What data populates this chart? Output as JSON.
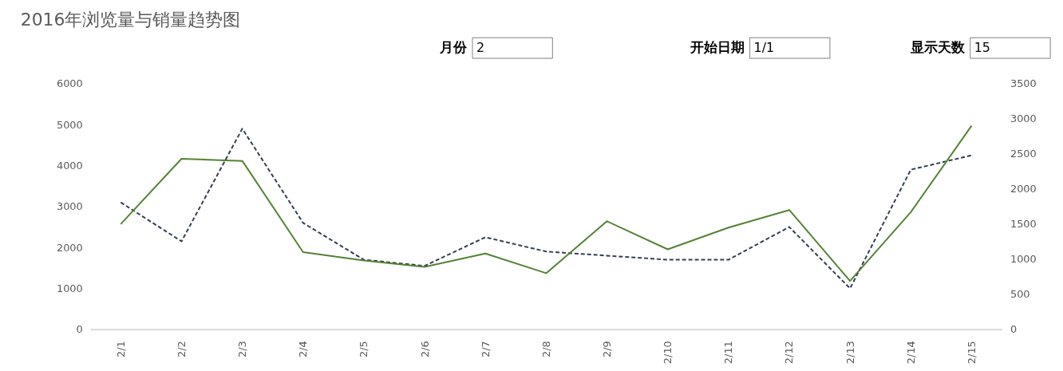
{
  "chart_data": {
    "type": "line",
    "title": "2016年浏览量与销量趋势图",
    "annotations": [
      "月份",
      "2",
      "开始日期",
      "1/1",
      "显示天数",
      "15"
    ],
    "categories": [
      "2/1",
      "2/2",
      "2/3",
      "2/4",
      "2/5",
      "2/6",
      "2/7",
      "2/8",
      "2/9",
      "2/10",
      "2/11",
      "2/12",
      "2/13",
      "2/14",
      "2/15"
    ],
    "series": [
      {
        "color": "#333f50",
        "line_style": "dashed",
        "values": [
          3100,
          2150,
          4900,
          2600,
          1700,
          1550,
          2250,
          1900,
          1800,
          1700,
          1700,
          2500,
          1000,
          3900,
          4250
        ]
      },
      {
        "color": "#548235",
        "line_style": "solid",
        "axis": "y2",
        "values": [
          1500,
          2430,
          2400,
          1100,
          980,
          890,
          1080,
          800,
          1540,
          1140,
          1450,
          1700,
          690,
          1670,
          2900
        ]
      }
    ],
    "ylim": [
      0,
      6000
    ],
    "yticks": [
      0,
      1000,
      2000,
      3000,
      4000,
      5000,
      6000
    ],
    "y2lim": [
      0,
      3500
    ],
    "y2ticks": [
      0,
      500,
      1000,
      1500,
      2000,
      2500,
      3000,
      3500
    ],
    "grid": false
  }
}
